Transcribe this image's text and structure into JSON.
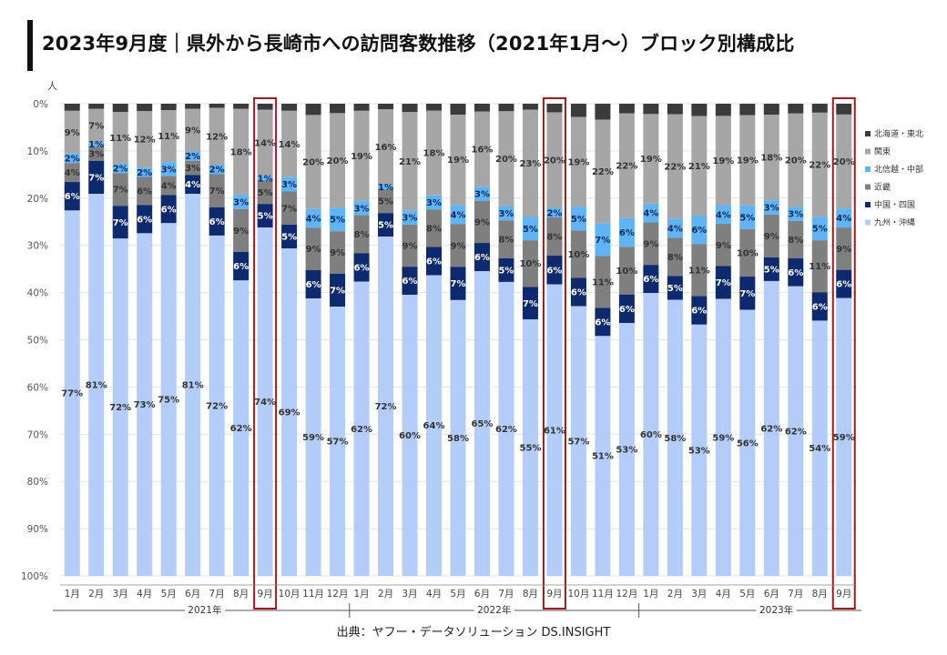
{
  "page_title": "2023年9月度｜県外から長崎市への訪問客数推移（2021年1月〜）ブロック別構成比",
  "source": "出典：ヤフー・データソリューション DS.INSIGHT",
  "colors": {
    "hokkaido_tohoku": "#3b3b3b",
    "kanto": "#a6a6a6",
    "hokushinetsu_chubu": "#61b4f3",
    "kinki": "#7f7f7f",
    "chugoku_shikoku": "#0e2a6e",
    "kyushu_okinawa": "#b3cdf8",
    "highlight": "#9e1b1b"
  },
  "chart_data": {
    "type": "bar",
    "stacked": true,
    "orientation": "vertical",
    "y_axis_direction": "top-down",
    "ylabel": "人",
    "ylim": [
      0,
      100
    ],
    "yticks": [
      "0%",
      "10%",
      "20%",
      "30%",
      "40%",
      "50%",
      "60%",
      "70%",
      "80%",
      "90%",
      "100%"
    ],
    "categories": [
      "1月",
      "2月",
      "3月",
      "4月",
      "5月",
      "6月",
      "7月",
      "8月",
      "9月",
      "10月",
      "11月",
      "12月",
      "1月",
      "2月",
      "3月",
      "4月",
      "5月",
      "6月",
      "7月",
      "8月",
      "9月",
      "10月",
      "11月",
      "12月",
      "1月",
      "2月",
      "3月",
      "4月",
      "5月",
      "6月",
      "7月",
      "8月",
      "9月"
    ],
    "year_labels": [
      {
        "label": "2021年",
        "start": 0,
        "end": 11
      },
      {
        "label": "2022年",
        "start": 12,
        "end": 23
      },
      {
        "label": "2023年",
        "start": 24,
        "end": 32
      }
    ],
    "highlight_indices": [
      8,
      20,
      32
    ],
    "series": [
      {
        "name": "北海道・東北",
        "color": "#3b3b3b",
        "values": [
          1.5,
          1.1,
          1.8,
          1.6,
          1.4,
          1.1,
          0.9,
          1.1,
          1.3,
          1.5,
          2.4,
          2.0,
          1.5,
          1.2,
          1.8,
          1.5,
          2.3,
          1.7,
          1.6,
          1.3,
          1.8,
          2.8,
          3.4,
          2.0,
          2.2,
          2.2,
          2.6,
          2.6,
          2.4,
          2.3,
          2.1,
          1.9,
          2.3
        ]
      },
      {
        "name": "関東",
        "color": "#a6a6a6",
        "values": [
          9,
          7,
          11,
          12,
          11,
          9,
          12,
          18,
          14,
          14,
          20,
          20,
          19,
          16,
          21,
          18,
          19,
          16,
          20,
          23,
          20,
          19,
          22,
          22,
          19,
          22,
          21,
          19,
          19,
          18,
          20,
          22,
          20
        ]
      },
      {
        "name": "北信越・中部",
        "color": "#61b4f3",
        "values": [
          2,
          1,
          2,
          2,
          3,
          2,
          2,
          3,
          1,
          3,
          4,
          5,
          3,
          1,
          3,
          3,
          4,
          3,
          3,
          5,
          2,
          5,
          7,
          6,
          4,
          4,
          6,
          4,
          5,
          3,
          3,
          5,
          4
        ]
      },
      {
        "name": "近畿",
        "color": "#7f7f7f",
        "values": [
          4,
          3,
          7,
          6,
          4,
          3,
          7,
          9,
          5,
          7,
          9,
          9,
          8,
          5,
          9,
          8,
          9,
          9,
          8,
          10,
          8,
          10,
          11,
          10,
          9,
          8,
          11,
          9,
          10,
          9,
          8,
          11,
          9
        ]
      },
      {
        "name": "中国・四国",
        "color": "#0e2a6e",
        "values": [
          6,
          7,
          7,
          6,
          6,
          4,
          6,
          6,
          5,
          5,
          6,
          7,
          6,
          5,
          6,
          6,
          7,
          6,
          5,
          7,
          6,
          6,
          6,
          6,
          6,
          5,
          6,
          7,
          7,
          5,
          6,
          6,
          6
        ]
      },
      {
        "name": "九州・沖縄",
        "color": "#b3cdf8",
        "values": [
          77,
          81,
          72,
          73,
          75,
          81,
          72,
          62,
          74,
          69,
          59,
          57,
          62,
          72,
          60,
          64,
          58,
          65,
          62,
          55,
          61,
          57,
          51,
          53,
          60,
          58,
          53,
          59,
          56,
          62,
          62,
          54,
          59
        ]
      }
    ],
    "labels": [
      [
        "",
        "9%",
        "2%",
        "4%",
        "6%",
        "77%"
      ],
      [
        "",
        "7%",
        "1%",
        "3%",
        "7%",
        "81%"
      ],
      [
        "",
        "11%",
        "2%",
        "7%",
        "7%",
        "72%"
      ],
      [
        "",
        "12%",
        "2%",
        "6%",
        "6%",
        "73%"
      ],
      [
        "",
        "11%",
        "3%",
        "4%",
        "6%",
        "75%"
      ],
      [
        "",
        "9%",
        "2%",
        "3%",
        "4%",
        "81%"
      ],
      [
        "",
        "12%",
        "2%",
        "7%",
        "6%",
        "72%"
      ],
      [
        "",
        "18%",
        "3%",
        "9%",
        "6%",
        "62%"
      ],
      [
        "",
        "14%",
        "1%",
        "5%",
        "5%",
        "74%"
      ],
      [
        "",
        "14%",
        "3%",
        "7%",
        "5%",
        "69%"
      ],
      [
        "",
        "20%",
        "4%",
        "9%",
        "6%",
        "59%"
      ],
      [
        "",
        "20%",
        "5%",
        "9%",
        "7%",
        "57%"
      ],
      [
        "",
        "19%",
        "3%",
        "8%",
        "6%",
        "62%"
      ],
      [
        "",
        "16%",
        "1%",
        "5%",
        "5%",
        "72%"
      ],
      [
        "",
        "21%",
        "3%",
        "9%",
        "6%",
        "60%"
      ],
      [
        "",
        "18%",
        "3%",
        "8%",
        "6%",
        "64%"
      ],
      [
        "",
        "19%",
        "4%",
        "9%",
        "7%",
        "58%"
      ],
      [
        "",
        "16%",
        "3%",
        "9%",
        "6%",
        "65%"
      ],
      [
        "",
        "20%",
        "3%",
        "8%",
        "5%",
        "62%"
      ],
      [
        "",
        "23%",
        "5%",
        "10%",
        "7%",
        "55%"
      ],
      [
        "",
        "20%",
        "2%",
        "8%",
        "6%",
        "61%"
      ],
      [
        "",
        "19%",
        "5%",
        "10%",
        "6%",
        "57%"
      ],
      [
        "",
        "22%",
        "7%",
        "11%",
        "6%",
        "51%"
      ],
      [
        "",
        "22%",
        "6%",
        "10%",
        "6%",
        "53%"
      ],
      [
        "",
        "19%",
        "4%",
        "9%",
        "6%",
        "60%"
      ],
      [
        "",
        "22%",
        "4%",
        "8%",
        "5%",
        "58%"
      ],
      [
        "",
        "21%",
        "6%",
        "11%",
        "6%",
        "53%"
      ],
      [
        "",
        "19%",
        "4%",
        "9%",
        "7%",
        "59%"
      ],
      [
        "",
        "19%",
        "5%",
        "10%",
        "7%",
        "56%"
      ],
      [
        "",
        "18%",
        "3%",
        "9%",
        "5%",
        "62%"
      ],
      [
        "",
        "20%",
        "3%",
        "8%",
        "6%",
        "62%"
      ],
      [
        "",
        "22%",
        "5%",
        "11%",
        "6%",
        "54%"
      ],
      [
        "",
        "20%",
        "4%",
        "9%",
        "6%",
        "59%"
      ]
    ],
    "legend_position": "right"
  }
}
